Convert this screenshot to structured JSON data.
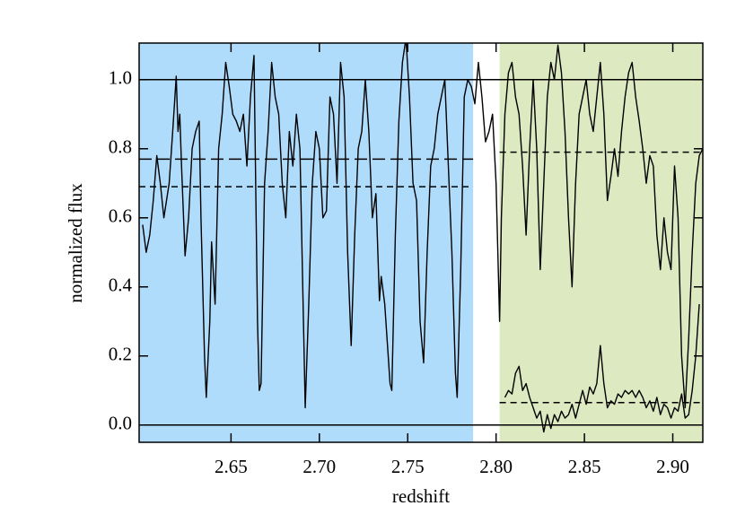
{
  "chart_data": {
    "type": "line",
    "xlabel": "redshift",
    "ylabel": "normalized flux",
    "xlim": [
      2.598,
      2.917
    ],
    "ylim": [
      -0.05,
      1.106
    ],
    "xticks": [
      2.65,
      {
        "value": 2.7,
        "label": "2.70"
      },
      2.75,
      {
        "value": 2.8,
        "label": "2.80"
      },
      2.85,
      {
        "value": 2.9,
        "label": "2.90"
      }
    ],
    "yticks": [
      {
        "value": 0,
        "label": "0.0"
      },
      0.2,
      0.4,
      0.6,
      0.8,
      {
        "value": 1,
        "label": "1.0"
      }
    ],
    "regions": [
      {
        "x": [
          2.598,
          2.787
        ],
        "color": "#b0dcfb"
      },
      {
        "x": [
          2.802,
          2.917
        ],
        "color": "#dde9c0"
      }
    ],
    "hlines": [
      {
        "y": 1.0,
        "dash": "solid"
      },
      {
        "y": 0.0,
        "dash": "solid"
      },
      {
        "y": 0.77,
        "x": [
          2.598,
          2.787
        ],
        "dash": "long"
      },
      {
        "y": 0.69,
        "x": [
          2.598,
          2.787
        ],
        "dash": "short"
      },
      {
        "y": 0.79,
        "x": [
          2.802,
          2.917
        ],
        "dash": "short"
      },
      {
        "y": 0.065,
        "x": [
          2.802,
          2.917
        ],
        "dash": "short"
      }
    ],
    "series": [
      {
        "color": "#000000",
        "x": [
          2.6,
          2.602,
          2.604,
          2.606,
          2.608,
          2.61,
          2.612,
          2.615,
          2.617,
          2.619,
          2.62,
          2.621,
          2.622,
          2.624,
          2.626,
          2.628,
          2.63,
          2.632,
          2.633,
          2.635,
          2.636,
          2.638,
          2.639,
          2.641,
          2.643,
          2.645,
          2.647,
          2.649,
          2.651,
          2.653,
          2.655,
          2.657,
          2.659,
          2.661,
          2.663,
          2.665,
          2.666,
          2.667,
          2.669,
          2.671,
          2.673,
          2.675,
          2.677,
          2.679,
          2.681,
          2.683,
          2.685,
          2.687,
          2.689,
          2.691,
          2.692,
          2.694,
          2.696,
          2.698,
          2.7,
          2.702,
          2.704,
          2.706,
          2.708,
          2.71,
          2.712,
          2.714,
          2.716,
          2.718,
          2.72,
          2.722,
          2.724,
          2.726,
          2.728,
          2.73,
          2.732,
          2.734,
          2.735,
          2.737,
          2.74,
          2.741,
          2.743,
          2.745,
          2.747,
          2.749,
          2.751,
          2.753,
          2.755,
          2.757,
          2.759,
          2.761,
          2.763,
          2.765,
          2.767,
          2.769,
          2.771,
          2.773,
          2.775,
          2.777,
          2.778,
          2.78,
          2.782,
          2.784,
          2.786,
          2.788,
          2.79,
          2.792,
          2.794,
          2.796,
          2.798,
          2.8,
          2.802,
          2.803,
          2.805,
          2.807,
          2.809,
          2.811,
          2.813,
          2.815,
          2.817,
          2.819,
          2.821,
          2.823,
          2.825,
          2.827,
          2.829,
          2.831,
          2.833,
          2.835,
          2.837,
          2.839,
          2.841,
          2.843,
          2.845,
          2.847,
          2.849,
          2.851,
          2.853,
          2.855,
          2.857,
          2.859,
          2.861,
          2.863,
          2.865,
          2.867,
          2.869,
          2.871,
          2.873,
          2.875,
          2.877,
          2.879,
          2.881,
          2.883,
          2.885,
          2.887,
          2.889,
          2.891,
          2.893,
          2.895,
          2.897,
          2.899,
          2.901,
          2.903,
          2.905,
          2.907,
          2.909,
          2.911,
          2.913,
          2.915,
          2.917
        ],
        "values": [
          0.58,
          0.5,
          0.55,
          0.65,
          0.78,
          0.7,
          0.6,
          0.7,
          0.85,
          1.01,
          0.85,
          0.9,
          0.75,
          0.49,
          0.6,
          0.8,
          0.85,
          0.88,
          0.6,
          0.2,
          0.08,
          0.3,
          0.53,
          0.35,
          0.8,
          0.9,
          1.05,
          0.98,
          0.9,
          0.88,
          0.85,
          0.9,
          0.75,
          0.95,
          1.07,
          0.3,
          0.1,
          0.12,
          0.7,
          0.85,
          1.05,
          0.95,
          0.9,
          0.7,
          0.6,
          0.85,
          0.75,
          0.9,
          0.8,
          0.3,
          0.05,
          0.35,
          0.7,
          0.85,
          0.8,
          0.6,
          0.62,
          0.95,
          0.9,
          0.7,
          1.05,
          0.95,
          0.5,
          0.23,
          0.55,
          0.8,
          0.85,
          1.0,
          0.85,
          0.6,
          0.67,
          0.36,
          0.43,
          0.35,
          0.12,
          0.1,
          0.55,
          0.88,
          1.05,
          1.12,
          0.95,
          0.7,
          0.65,
          0.3,
          0.18,
          0.5,
          0.75,
          0.8,
          0.9,
          0.95,
          1.0,
          0.75,
          0.5,
          0.15,
          0.08,
          0.45,
          0.95,
          1.0,
          0.98,
          0.93,
          1.05,
          0.95,
          0.82,
          0.85,
          0.9,
          0.7,
          0.3,
          0.6,
          0.9,
          1.02,
          1.05,
          0.95,
          0.9,
          0.75,
          0.55,
          0.8,
          1.0,
          0.8,
          0.45,
          0.7,
          0.95,
          1.05,
          1.0,
          1.1,
          1.02,
          0.85,
          0.6,
          0.4,
          0.7,
          0.9,
          0.95,
          1.0,
          0.9,
          0.85,
          0.95,
          1.05,
          0.9,
          0.65,
          0.72,
          0.8,
          0.72,
          0.85,
          0.95,
          1.02,
          1.05,
          0.95,
          0.88,
          0.8,
          0.7,
          0.78,
          0.75,
          0.55,
          0.45,
          0.6,
          0.5,
          0.45,
          0.75,
          0.6,
          0.2,
          0.05,
          0.25,
          0.5,
          0.7,
          0.78,
          0.8
        ]
      },
      {
        "color": "#000000",
        "x": [
          2.805,
          2.807,
          2.809,
          2.811,
          2.813,
          2.815,
          2.817,
          2.819,
          2.821,
          2.823,
          2.825,
          2.827,
          2.829,
          2.831,
          2.833,
          2.835,
          2.837,
          2.839,
          2.841,
          2.843,
          2.845,
          2.847,
          2.849,
          2.851,
          2.853,
          2.855,
          2.857,
          2.859,
          2.861,
          2.863,
          2.865,
          2.867,
          2.869,
          2.871,
          2.873,
          2.875,
          2.877,
          2.879,
          2.881,
          2.883,
          2.885,
          2.887,
          2.889,
          2.891,
          2.893,
          2.895,
          2.897,
          2.899,
          2.901,
          2.903,
          2.905,
          2.907,
          2.909,
          2.911,
          2.913,
          2.915
        ],
        "values": [
          0.08,
          0.1,
          0.09,
          0.15,
          0.17,
          0.1,
          0.12,
          0.08,
          0.05,
          0.02,
          0.04,
          -0.02,
          0.03,
          -0.01,
          0.03,
          0.01,
          0.04,
          0.02,
          0.03,
          0.06,
          0.02,
          0.06,
          0.1,
          0.06,
          0.11,
          0.09,
          0.12,
          0.23,
          0.12,
          0.05,
          0.07,
          0.06,
          0.09,
          0.08,
          0.1,
          0.09,
          0.1,
          0.08,
          0.1,
          0.08,
          0.05,
          0.07,
          0.04,
          0.08,
          0.03,
          0.06,
          0.05,
          0.02,
          0.05,
          0.04,
          0.09,
          0.02,
          0.03,
          0.1,
          0.2,
          0.35
        ]
      }
    ]
  }
}
